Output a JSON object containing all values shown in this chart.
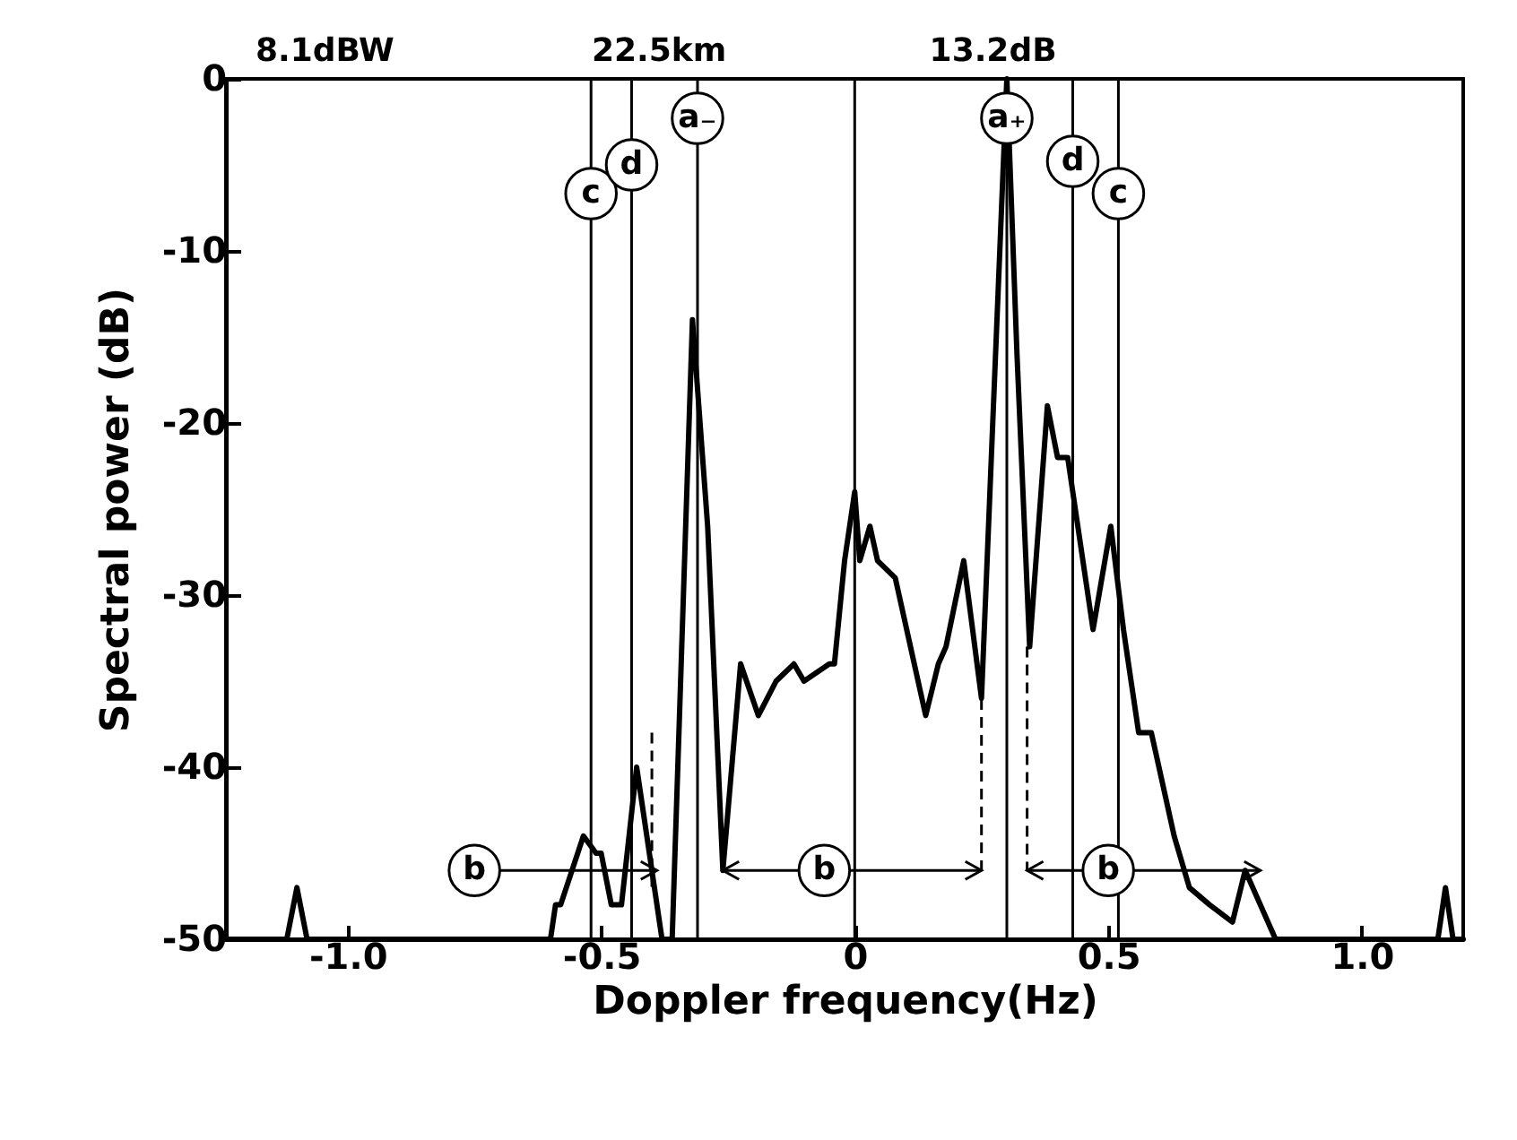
{
  "chart_data": {
    "type": "line",
    "xlabel": "Doppler frequency(Hz)",
    "ylabel": "Spectral power (dB)",
    "x": [
      -1.24,
      -1.12,
      -1.1,
      -1.08,
      -0.6,
      -0.59,
      -0.58,
      -0.535,
      -0.51,
      -0.5,
      -0.48,
      -0.46,
      -0.43,
      -0.41,
      -0.38,
      -0.36,
      -0.32,
      -0.29,
      -0.26,
      -0.225,
      -0.19,
      -0.155,
      -0.12,
      -0.1,
      -0.05,
      -0.04,
      -0.02,
      0,
      0.01,
      0.03,
      0.045,
      0.08,
      0.11,
      0.14,
      0.165,
      0.18,
      0.215,
      0.25,
      0.3,
      0.32,
      0.345,
      0.38,
      0.4,
      0.42,
      0.47,
      0.505,
      0.53,
      0.56,
      0.585,
      0.63,
      0.66,
      0.7,
      0.745,
      0.77,
      0.83,
      1.15,
      1.165,
      1.18,
      1.2
    ],
    "series": [
      {
        "color": "#000000",
        "values": [
          -50,
          -50,
          -47,
          -50,
          -50,
          -48,
          -48,
          -44,
          -45,
          -45,
          -48,
          -48,
          -40,
          -44,
          -50,
          -50,
          -14,
          -26,
          -46,
          -34,
          -37,
          -35,
          -34,
          -35,
          -34,
          -34,
          -28,
          -24,
          -28,
          -26,
          -28,
          -29,
          -33,
          -37,
          -34,
          -33,
          -28,
          -36,
          0,
          -16,
          -33,
          -19,
          -22,
          -22,
          -32,
          -26,
          -32,
          -38,
          -38,
          -44,
          -47,
          -48,
          -49,
          -46,
          -50,
          -50,
          -47,
          -50,
          -50
        ]
      }
    ],
    "xlim": [
      -1.24,
      1.2
    ],
    "ylim": [
      -50,
      0
    ],
    "xticks": [
      {
        "value": -1,
        "label": "-1.0"
      },
      {
        "value": -0.5,
        "label": "-0.5"
      },
      0,
      0.5,
      {
        "value": 1,
        "label": "1.0"
      }
    ],
    "yticks": [
      {
        "value": -50,
        "label": "-50"
      },
      {
        "value": -40,
        "label": "-40"
      },
      {
        "value": -30,
        "label": "-30"
      },
      {
        "value": -20,
        "label": "-20"
      },
      {
        "value": -10,
        "label": "-10"
      },
      0
    ],
    "grid": false,
    "marker": "none",
    "line_style": "solid",
    "ref_lines": [
      {
        "axis": "x",
        "value": -0.52,
        "label": "c"
      },
      {
        "axis": "x",
        "value": -0.44,
        "label": "d"
      },
      {
        "axis": "x",
        "value": -0.31,
        "label": "a₋"
      },
      {
        "axis": "x",
        "value": 0
      },
      {
        "axis": "x",
        "value": 0.3,
        "label": "a₊"
      },
      {
        "axis": "x",
        "value": 0.43,
        "label": "d"
      },
      {
        "axis": "x",
        "value": 0.52,
        "label": "c"
      }
    ],
    "annotations": [
      "8.1dBW",
      "22.5km",
      "13.2dB",
      {
        "text": "b",
        "x": -0.75,
        "y": -46
      },
      {
        "text": "b",
        "x": -0.06,
        "y": -46
      },
      {
        "text": "b",
        "x": 0.5,
        "y": -46
      }
    ]
  }
}
